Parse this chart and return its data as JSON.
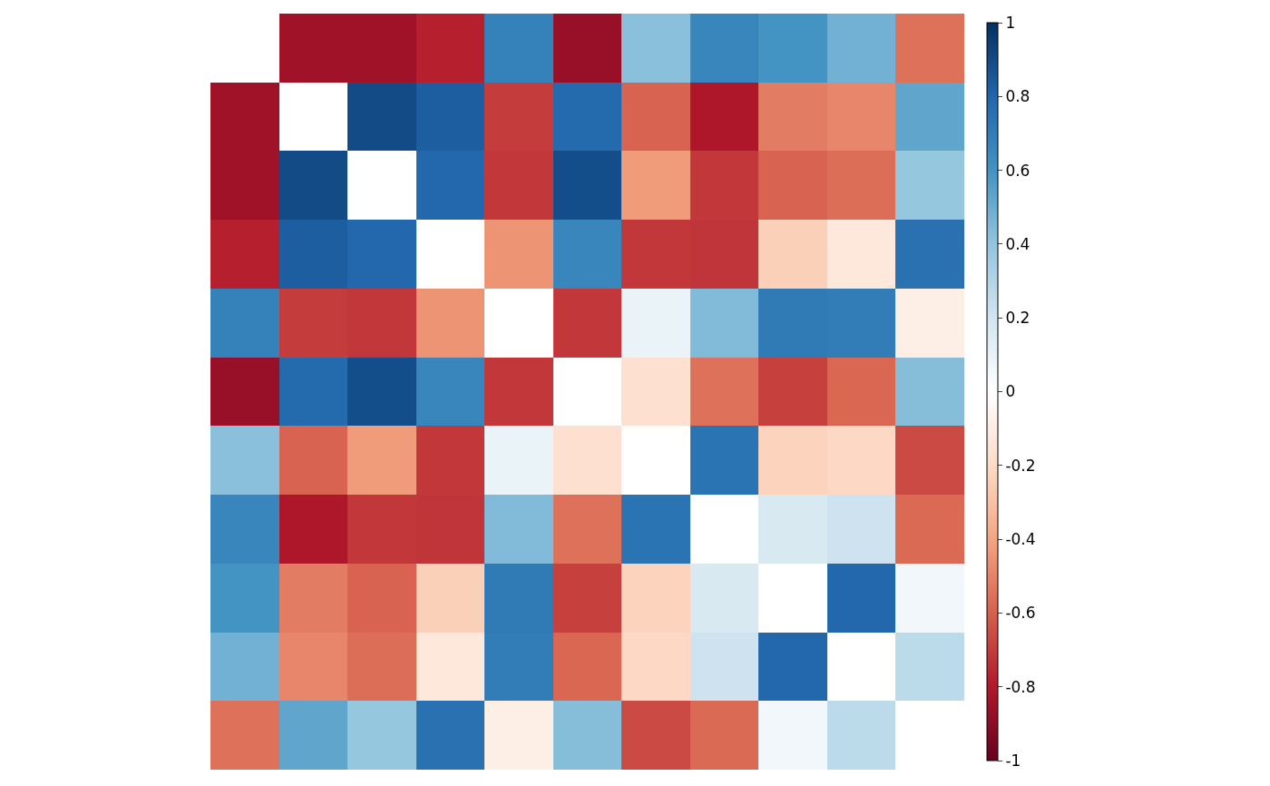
{
  "chart_data": {
    "type": "heatmap",
    "categories": [
      null,
      null,
      null,
      null,
      null,
      null,
      null,
      null,
      null,
      null,
      null
    ],
    "y_categories": [
      null,
      null,
      null,
      null,
      null,
      null,
      null,
      null,
      null,
      null,
      null
    ],
    "cells": [
      [
        null,
        -0.85,
        -0.85,
        -0.78,
        0.68,
        -0.87,
        0.42,
        0.66,
        0.6,
        0.48,
        -0.55
      ],
      [
        -0.85,
        null,
        0.9,
        0.83,
        -0.7,
        0.78,
        -0.59,
        -0.81,
        -0.52,
        -0.49,
        0.53
      ],
      [
        -0.85,
        0.9,
        null,
        0.79,
        -0.71,
        0.89,
        -0.43,
        -0.71,
        -0.59,
        -0.56,
        0.39
      ],
      [
        -0.78,
        0.83,
        0.79,
        null,
        -0.45,
        0.66,
        -0.71,
        -0.72,
        -0.24,
        -0.13,
        0.75
      ],
      [
        0.68,
        -0.7,
        -0.71,
        -0.45,
        null,
        -0.71,
        0.09,
        0.44,
        0.71,
        0.7,
        -0.09
      ],
      [
        -0.87,
        0.78,
        0.89,
        0.66,
        -0.71,
        null,
        -0.17,
        -0.55,
        -0.69,
        -0.58,
        0.43
      ],
      [
        0.42,
        -0.59,
        -0.43,
        -0.71,
        0.09,
        -0.17,
        null,
        0.74,
        -0.23,
        -0.21,
        -0.66
      ],
      [
        0.66,
        -0.81,
        -0.71,
        -0.72,
        0.44,
        -0.55,
        0.74,
        null,
        0.17,
        0.21,
        -0.57
      ],
      [
        0.6,
        -0.52,
        -0.59,
        -0.24,
        0.71,
        -0.69,
        -0.23,
        0.17,
        null,
        0.79,
        0.06
      ],
      [
        0.48,
        -0.49,
        -0.56,
        -0.13,
        0.7,
        -0.58,
        -0.21,
        0.21,
        0.79,
        null,
        0.27
      ],
      [
        -0.55,
        0.53,
        0.39,
        0.75,
        -0.09,
        0.43,
        -0.66,
        -0.57,
        0.06,
        0.27,
        null
      ]
    ],
    "clim": [
      -1,
      1
    ],
    "cticks": [
      -1,
      -0.8,
      -0.6,
      -0.4,
      -0.2,
      0,
      0.2,
      0.4,
      0.6,
      0.8,
      1
    ]
  }
}
